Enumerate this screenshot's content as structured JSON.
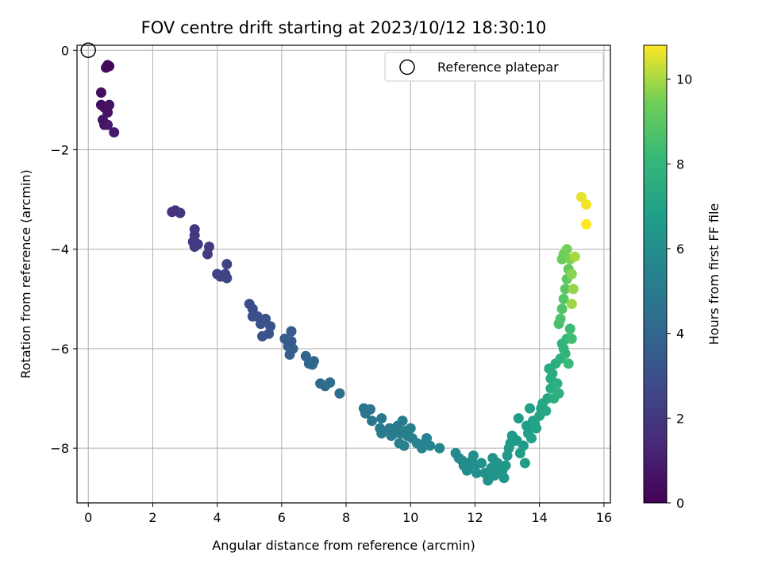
{
  "chart_data": {
    "type": "scatter",
    "title": "FOV centre drift starting at 2023/10/12 18:30:10",
    "xlabel": "Angular distance from reference (arcmin)",
    "ylabel": "Rotation from reference (arcmin)",
    "xlim": [
      -0.35,
      16.2
    ],
    "ylim": [
      -9.1,
      0.1
    ],
    "x_ticks": [
      0,
      2,
      4,
      6,
      8,
      10,
      12,
      14,
      16
    ],
    "y_ticks": [
      0,
      -2,
      -4,
      -6,
      -8
    ],
    "grid": true,
    "legend": {
      "position": "top-right",
      "entries": [
        "Reference platepar"
      ]
    },
    "reference_point": {
      "x": 0,
      "y": 0
    },
    "colorbar": {
      "label": "Hours from first FF file",
      "colormap": "viridis",
      "range": [
        0,
        10.8
      ],
      "ticks": [
        0,
        2,
        4,
        6,
        8,
        10
      ]
    },
    "points": [
      [
        0.6,
        -0.3,
        0.2
      ],
      [
        0.55,
        -0.35,
        0.3
      ],
      [
        0.65,
        -0.32,
        0.2
      ],
      [
        0.4,
        -0.85,
        0.4
      ],
      [
        0.4,
        -1.1,
        0.5
      ],
      [
        0.5,
        -1.15,
        0.5
      ],
      [
        0.65,
        -1.1,
        0.6
      ],
      [
        0.6,
        -1.25,
        0.6
      ],
      [
        0.45,
        -1.4,
        0.7
      ],
      [
        0.5,
        -1.5,
        0.7
      ],
      [
        0.6,
        -1.5,
        0.8
      ],
      [
        0.8,
        -1.65,
        0.9
      ],
      [
        2.6,
        -3.25,
        1.8
      ],
      [
        2.7,
        -3.22,
        1.8
      ],
      [
        2.85,
        -3.27,
        1.9
      ],
      [
        3.3,
        -3.6,
        2.0
      ],
      [
        3.3,
        -3.72,
        2.0
      ],
      [
        3.25,
        -3.85,
        2.1
      ],
      [
        3.3,
        -3.95,
        2.1
      ],
      [
        3.4,
        -3.9,
        2.1
      ],
      [
        3.75,
        -3.95,
        2.2
      ],
      [
        3.7,
        -4.1,
        2.2
      ],
      [
        4.0,
        -4.5,
        2.4
      ],
      [
        4.1,
        -4.55,
        2.4
      ],
      [
        4.3,
        -4.3,
        2.5
      ],
      [
        4.25,
        -4.5,
        2.5
      ],
      [
        4.3,
        -4.58,
        2.5
      ],
      [
        5.0,
        -5.1,
        2.9
      ],
      [
        5.1,
        -5.2,
        2.9
      ],
      [
        5.1,
        -5.35,
        3.0
      ],
      [
        5.25,
        -5.35,
        3.0
      ],
      [
        5.35,
        -5.5,
        3.0
      ],
      [
        5.5,
        -5.4,
        3.1
      ],
      [
        5.65,
        -5.55,
        3.1
      ],
      [
        5.4,
        -5.75,
        3.2
      ],
      [
        5.6,
        -5.7,
        3.2
      ],
      [
        6.3,
        -5.65,
        3.5
      ],
      [
        6.1,
        -5.8,
        3.5
      ],
      [
        6.2,
        -5.95,
        3.6
      ],
      [
        6.3,
        -5.85,
        3.6
      ],
      [
        6.35,
        -6.0,
        3.6
      ],
      [
        6.25,
        -6.12,
        3.7
      ],
      [
        6.75,
        -6.15,
        3.9
      ],
      [
        6.85,
        -6.3,
        3.9
      ],
      [
        7.0,
        -6.25,
        4.0
      ],
      [
        6.95,
        -6.32,
        4.0
      ],
      [
        7.2,
        -6.7,
        4.2
      ],
      [
        7.35,
        -6.75,
        4.2
      ],
      [
        7.5,
        -6.68,
        4.3
      ],
      [
        7.8,
        -6.9,
        4.4
      ],
      [
        8.55,
        -7.2,
        4.7
      ],
      [
        8.6,
        -7.3,
        4.7
      ],
      [
        8.75,
        -7.22,
        4.8
      ],
      [
        8.8,
        -7.45,
        4.8
      ],
      [
        9.1,
        -7.4,
        4.9
      ],
      [
        9.05,
        -7.6,
        4.9
      ],
      [
        9.1,
        -7.7,
        5.0
      ],
      [
        9.35,
        -7.6,
        5.0
      ],
      [
        9.4,
        -7.75,
        5.1
      ],
      [
        9.5,
        -7.7,
        5.1
      ],
      [
        9.6,
        -7.55,
        5.1
      ],
      [
        9.75,
        -7.45,
        5.1
      ],
      [
        9.7,
        -7.7,
        5.2
      ],
      [
        9.65,
        -7.9,
        5.2
      ],
      [
        9.85,
        -7.65,
        5.2
      ],
      [
        9.9,
        -7.75,
        5.3
      ],
      [
        9.8,
        -7.95,
        5.3
      ],
      [
        10.0,
        -7.6,
        5.3
      ],
      [
        10.05,
        -7.8,
        5.3
      ],
      [
        10.2,
        -7.9,
        5.4
      ],
      [
        10.35,
        -8.0,
        5.4
      ],
      [
        10.45,
        -7.9,
        5.4
      ],
      [
        10.5,
        -7.8,
        5.4
      ],
      [
        10.6,
        -7.95,
        5.5
      ],
      [
        10.9,
        -8.0,
        5.6
      ],
      [
        11.4,
        -8.1,
        5.8
      ],
      [
        11.5,
        -8.2,
        5.8
      ],
      [
        11.6,
        -8.25,
        5.9
      ],
      [
        11.65,
        -8.35,
        5.9
      ],
      [
        11.75,
        -8.45,
        5.9
      ],
      [
        11.85,
        -8.3,
        6.0
      ],
      [
        11.9,
        -8.25,
        6.0
      ],
      [
        11.95,
        -8.15,
        6.0
      ],
      [
        12.0,
        -8.35,
        6.0
      ],
      [
        12.05,
        -8.5,
        6.1
      ],
      [
        12.2,
        -8.3,
        6.1
      ],
      [
        12.3,
        -8.5,
        6.1
      ],
      [
        12.4,
        -8.65,
        6.2
      ],
      [
        12.5,
        -8.4,
        6.2
      ],
      [
        12.55,
        -8.2,
        6.2
      ],
      [
        12.6,
        -8.55,
        6.3
      ],
      [
        12.7,
        -8.3,
        6.3
      ],
      [
        12.75,
        -8.45,
        6.3
      ],
      [
        12.85,
        -8.45,
        6.4
      ],
      [
        12.9,
        -8.6,
        6.4
      ],
      [
        12.95,
        -8.35,
        6.4
      ],
      [
        13.0,
        -8.15,
        6.5
      ],
      [
        13.05,
        -8.0,
        6.5
      ],
      [
        13.1,
        -7.9,
        6.5
      ],
      [
        13.15,
        -7.75,
        6.6
      ],
      [
        13.2,
        -7.8,
        6.6
      ],
      [
        13.3,
        -7.85,
        6.6
      ],
      [
        13.35,
        -7.4,
        6.7
      ],
      [
        13.4,
        -8.1,
        6.7
      ],
      [
        13.5,
        -7.95,
        6.7
      ],
      [
        13.55,
        -8.3,
        6.8
      ],
      [
        13.6,
        -7.55,
        6.8
      ],
      [
        13.65,
        -7.7,
        6.8
      ],
      [
        13.7,
        -7.2,
        6.9
      ],
      [
        13.75,
        -7.8,
        6.9
      ],
      [
        13.8,
        -7.45,
        6.9
      ],
      [
        13.85,
        -7.5,
        7.0
      ],
      [
        13.9,
        -7.6,
        7.0
      ],
      [
        14.0,
        -7.35,
        7.1
      ],
      [
        14.05,
        -7.2,
        7.1
      ],
      [
        14.1,
        -7.1,
        7.2
      ],
      [
        14.2,
        -7.25,
        7.2
      ],
      [
        14.25,
        -7.0,
        7.3
      ],
      [
        14.3,
        -6.4,
        7.4
      ],
      [
        14.35,
        -6.6,
        7.4
      ],
      [
        14.35,
        -6.8,
        7.5
      ],
      [
        14.4,
        -6.5,
        7.5
      ],
      [
        14.45,
        -7.0,
        7.6
      ],
      [
        14.5,
        -6.3,
        7.6
      ],
      [
        14.55,
        -6.7,
        7.7
      ],
      [
        14.6,
        -6.9,
        7.7
      ],
      [
        14.65,
        -6.2,
        7.8
      ],
      [
        14.7,
        -5.9,
        7.9
      ],
      [
        14.75,
        -6.0,
        8.0
      ],
      [
        14.8,
        -6.1,
        8.0
      ],
      [
        14.85,
        -5.8,
        8.1
      ],
      [
        14.9,
        -6.3,
        8.2
      ],
      [
        14.95,
        -5.6,
        8.3
      ],
      [
        15.0,
        -5.8,
        8.4
      ],
      [
        14.6,
        -5.5,
        8.6
      ],
      [
        14.65,
        -5.4,
        8.7
      ],
      [
        14.7,
        -5.2,
        8.8
      ],
      [
        14.75,
        -5.0,
        8.9
      ],
      [
        14.8,
        -4.8,
        9.0
      ],
      [
        14.85,
        -4.6,
        9.1
      ],
      [
        14.9,
        -4.4,
        9.2
      ],
      [
        14.7,
        -4.2,
        9.3
      ],
      [
        14.75,
        -4.1,
        9.4
      ],
      [
        14.85,
        -4.0,
        9.5
      ],
      [
        14.95,
        -4.2,
        9.6
      ],
      [
        15.0,
        -4.5,
        9.7
      ],
      [
        15.05,
        -4.8,
        9.8
      ],
      [
        15.0,
        -5.1,
        9.9
      ],
      [
        15.1,
        -4.15,
        10.0
      ],
      [
        15.3,
        -2.95,
        10.6
      ],
      [
        15.45,
        -3.1,
        10.7
      ],
      [
        15.45,
        -3.5,
        10.8
      ]
    ]
  }
}
